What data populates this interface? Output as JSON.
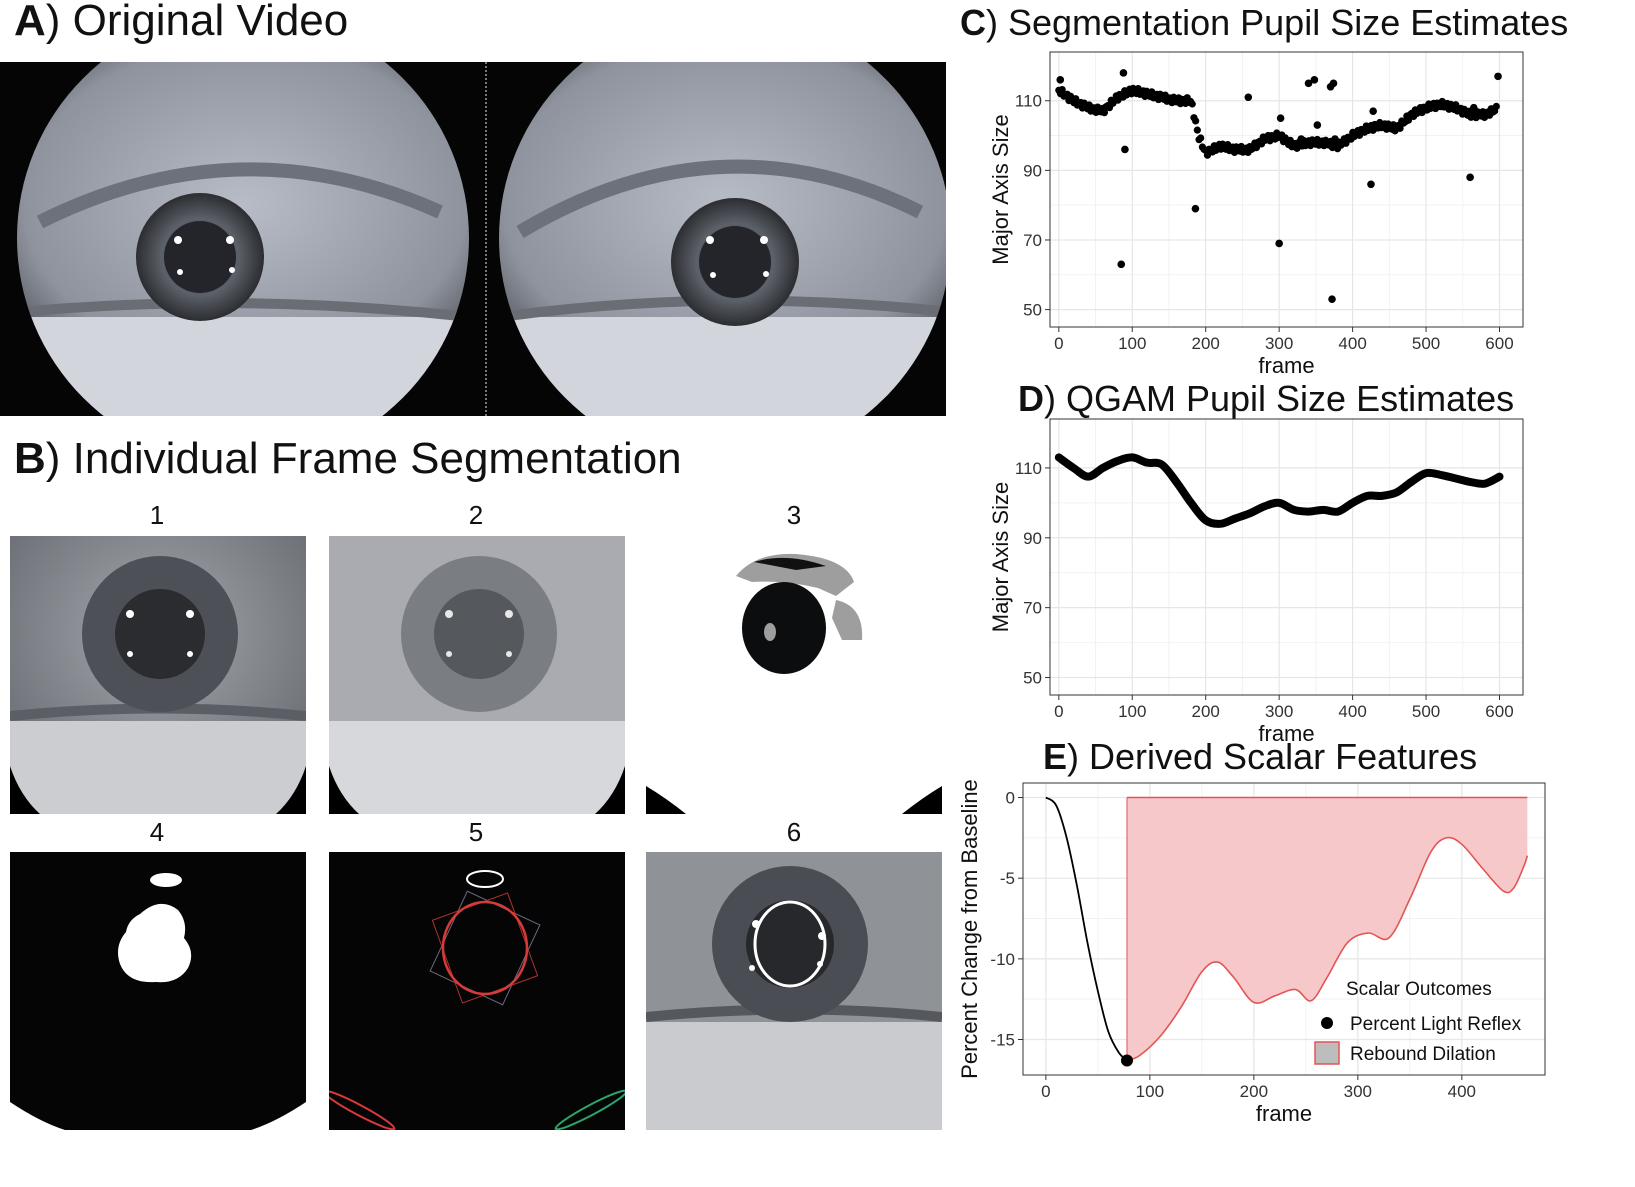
{
  "panel_a": {
    "letter": "A",
    "title": ") Original Video"
  },
  "panel_b": {
    "letter": "B",
    "title": ") Individual Frame Segmentation",
    "frames": [
      "1",
      "2",
      "3",
      "4",
      "5",
      "6"
    ]
  },
  "panel_c": {
    "letter": "C",
    "title": ") Segmentation Pupil Size Estimates"
  },
  "panel_d": {
    "letter": "D",
    "title": ") QGAM Pupil Size Estimates"
  },
  "panel_e": {
    "letter": "E",
    "title": ") Derived Scalar Features"
  },
  "colors": {
    "points": "#000000",
    "fill": "#f7c8c9",
    "line": "#e25555",
    "grid": "#e6e6e6"
  },
  "chart_data": [
    {
      "id": "C",
      "type": "scatter",
      "xlabel": "frame",
      "ylabel": "Major Axis Size",
      "xlim": [
        -12,
        632
      ],
      "ylim": [
        45,
        124
      ],
      "xticks": [
        0,
        100,
        200,
        300,
        400,
        500,
        600
      ],
      "yticks": [
        50,
        70,
        90,
        110
      ],
      "grid": true,
      "trend": [
        [
          0,
          113
        ],
        [
          20,
          110
        ],
        [
          40,
          108
        ],
        [
          60,
          107
        ],
        [
          80,
          111
        ],
        [
          100,
          113
        ],
        [
          120,
          112
        ],
        [
          140,
          111
        ],
        [
          160,
          110
        ],
        [
          180,
          110
        ],
        [
          190,
          100
        ],
        [
          200,
          95
        ],
        [
          220,
          97
        ],
        [
          240,
          96
        ],
        [
          260,
          96
        ],
        [
          280,
          99
        ],
        [
          300,
          100
        ],
        [
          320,
          97
        ],
        [
          340,
          98
        ],
        [
          360,
          98
        ],
        [
          380,
          97
        ],
        [
          400,
          100
        ],
        [
          420,
          102
        ],
        [
          440,
          103
        ],
        [
          460,
          102
        ],
        [
          480,
          106
        ],
        [
          500,
          108
        ],
        [
          520,
          109
        ],
        [
          540,
          108
        ],
        [
          560,
          106
        ],
        [
          580,
          106
        ],
        [
          600,
          108
        ]
      ],
      "outliers": [
        [
          2,
          116
        ],
        [
          85,
          63
        ],
        [
          88,
          118
        ],
        [
          90,
          96
        ],
        [
          186,
          79
        ],
        [
          258,
          111
        ],
        [
          300,
          69
        ],
        [
          302,
          105
        ],
        [
          330,
          99
        ],
        [
          340,
          115
        ],
        [
          348,
          116
        ],
        [
          352,
          103
        ],
        [
          370,
          114
        ],
        [
          372,
          53
        ],
        [
          374,
          115
        ],
        [
          376,
          99
        ],
        [
          380,
          97
        ],
        [
          425,
          86
        ],
        [
          428,
          107
        ],
        [
          560,
          88
        ],
        [
          565,
          108
        ],
        [
          598,
          117
        ]
      ]
    },
    {
      "id": "D",
      "type": "line",
      "xlabel": "frame",
      "ylabel": "Major Axis Size",
      "xlim": [
        -12,
        632
      ],
      "ylim": [
        45,
        124
      ],
      "xticks": [
        0,
        100,
        200,
        300,
        400,
        500,
        600
      ],
      "yticks": [
        50,
        70,
        90,
        110
      ],
      "grid": true,
      "x": [
        0,
        20,
        40,
        60,
        80,
        100,
        120,
        140,
        160,
        180,
        200,
        220,
        240,
        260,
        280,
        300,
        320,
        340,
        360,
        380,
        400,
        420,
        440,
        460,
        480,
        500,
        520,
        540,
        560,
        580,
        600
      ],
      "y": [
        113,
        110,
        107.5,
        110,
        112,
        113,
        111.5,
        111,
        106,
        100,
        95,
        94,
        95.5,
        97,
        99,
        100,
        98,
        97.5,
        98,
        97.5,
        100,
        102,
        102,
        103,
        106,
        108.5,
        108,
        107,
        106,
        105.5,
        107.5
      ]
    },
    {
      "id": "E",
      "type": "area",
      "xlabel": "frame",
      "ylabel": "Percent Change from Baseline",
      "xlim": [
        -22,
        480
      ],
      "ylim": [
        -17.2,
        0.9
      ],
      "xticks": [
        0,
        100,
        200,
        300,
        400
      ],
      "yticks": [
        0,
        -5,
        -10,
        -15
      ],
      "grid": true,
      "baseline_line": {
        "x": [
          0,
          10,
          20,
          30,
          40,
          50,
          60,
          70,
          78
        ],
        "y": [
          0,
          -0.5,
          -2.5,
          -5.5,
          -9,
          -12,
          -14.5,
          -15.8,
          -16.3
        ]
      },
      "rebound_curve": {
        "x": [
          78,
          90,
          110,
          130,
          150,
          165,
          180,
          200,
          220,
          240,
          255,
          270,
          290,
          310,
          330,
          350,
          370,
          385,
          400,
          420,
          440,
          450,
          460,
          463
        ],
        "y": [
          -16.3,
          -16,
          -14.8,
          -13,
          -10.8,
          -10.2,
          -11.1,
          -12.7,
          -12.3,
          -11.9,
          -12.6,
          -11.2,
          -9,
          -8.4,
          -8.7,
          -6.3,
          -3.4,
          -2.5,
          -2.9,
          -4.4,
          -5.8,
          -5.6,
          -4.2,
          -3.6
        ]
      },
      "fill_top": 0,
      "minimum_point": {
        "x": 78,
        "y": -16.3
      },
      "legend_title": "Scalar Outcomes",
      "legend": [
        {
          "label": "Percent Light Reflex",
          "marker": "point"
        },
        {
          "label": "Rebound Dilation",
          "marker": "fill"
        }
      ],
      "legend_position": "bottom-right"
    }
  ]
}
